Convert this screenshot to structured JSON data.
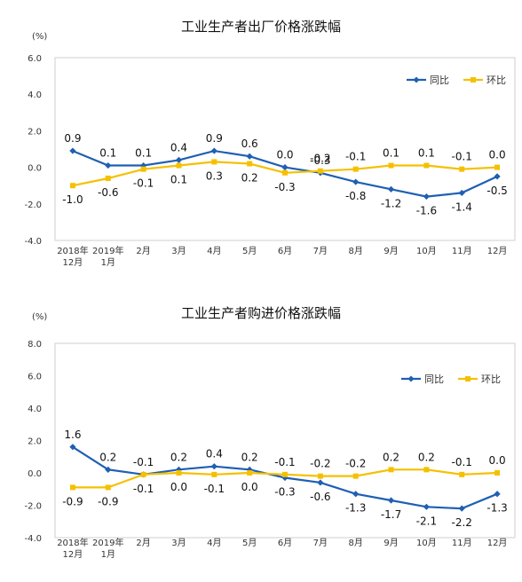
{
  "colors": {
    "yoy": "#1f5fb4",
    "mom": "#f5c000"
  },
  "chart_data": [
    {
      "type": "line",
      "title": "工业生产者出厂价格涨跌幅",
      "unit": "(%)",
      "categories": [
        [
          "2018年",
          "12月"
        ],
        [
          "2019年",
          "1月"
        ],
        [
          "2月"
        ],
        [
          "3月"
        ],
        [
          "4月"
        ],
        [
          "5月"
        ],
        [
          "6月"
        ],
        [
          "7月"
        ],
        [
          "8月"
        ],
        [
          "9月"
        ],
        [
          "10月"
        ],
        [
          "11月"
        ],
        [
          "12月"
        ]
      ],
      "ylim": [
        -4.0,
        6.0
      ],
      "yticks": [
        "6.0",
        "4.0",
        "2.0",
        "0.0",
        "-2.0",
        "-4.0"
      ],
      "legend": "top-right",
      "series": [
        {
          "name": "同比",
          "values": [
            0.9,
            0.1,
            0.1,
            0.4,
            0.9,
            0.6,
            0.0,
            -0.3,
            -0.8,
            -1.2,
            -1.6,
            -1.4,
            -0.5
          ],
          "labels": [
            "0.9",
            "0.1",
            "0.1",
            "0.4",
            "0.9",
            "0.6",
            "0.0",
            "-0.3",
            "-0.8",
            "-1.2",
            "-1.6",
            "-1.4",
            "-0.5"
          ]
        },
        {
          "name": "环比",
          "values": [
            -1.0,
            -0.6,
            -0.1,
            0.1,
            0.3,
            0.2,
            -0.3,
            -0.2,
            -0.1,
            0.1,
            0.1,
            -0.1,
            0.0
          ],
          "labels": [
            "-1.0",
            "-0.6",
            "-0.1",
            "0.1",
            "0.3",
            "0.2",
            "-0.3",
            "-0.2",
            "-0.1",
            "0.1",
            "0.1",
            "-0.1",
            "0.0"
          ]
        }
      ]
    },
    {
      "type": "line",
      "title": "工业生产者购进价格涨跌幅",
      "unit": "(%)",
      "categories": [
        [
          "2018年",
          "12月"
        ],
        [
          "2019年",
          "1月"
        ],
        [
          "2月"
        ],
        [
          "3月"
        ],
        [
          "4月"
        ],
        [
          "5月"
        ],
        [
          "6月"
        ],
        [
          "7月"
        ],
        [
          "8月"
        ],
        [
          "9月"
        ],
        [
          "10月"
        ],
        [
          "11月"
        ],
        [
          "12月"
        ]
      ],
      "ylim": [
        -4.0,
        8.0
      ],
      "yticks": [
        "8.0",
        "6.0",
        "4.0",
        "2.0",
        "0.0",
        "-2.0",
        "-4.0"
      ],
      "legend": "top-right",
      "series": [
        {
          "name": "同比",
          "values": [
            1.6,
            0.2,
            -0.1,
            0.2,
            0.4,
            0.2,
            -0.3,
            -0.6,
            -1.3,
            -1.7,
            -2.1,
            -2.2,
            -1.3
          ],
          "labels": [
            "1.6",
            "0.2",
            "-0.1",
            "0.2",
            "0.4",
            "0.2",
            "-0.3",
            "-0.6",
            "-1.3",
            "-1.7",
            "-2.1",
            "-2.2",
            "-1.3"
          ]
        },
        {
          "name": "环比",
          "values": [
            -0.9,
            -0.9,
            -0.1,
            0.0,
            -0.1,
            0.0,
            -0.1,
            -0.2,
            -0.2,
            0.2,
            0.2,
            -0.1,
            0.0
          ],
          "labels": [
            "-0.9",
            "-0.9",
            "-0.1",
            "0.0",
            "-0.1",
            "0.0",
            "-0.1",
            "-0.2",
            "-0.2",
            "0.2",
            "0.2",
            "-0.1",
            "0.0"
          ]
        }
      ]
    }
  ]
}
